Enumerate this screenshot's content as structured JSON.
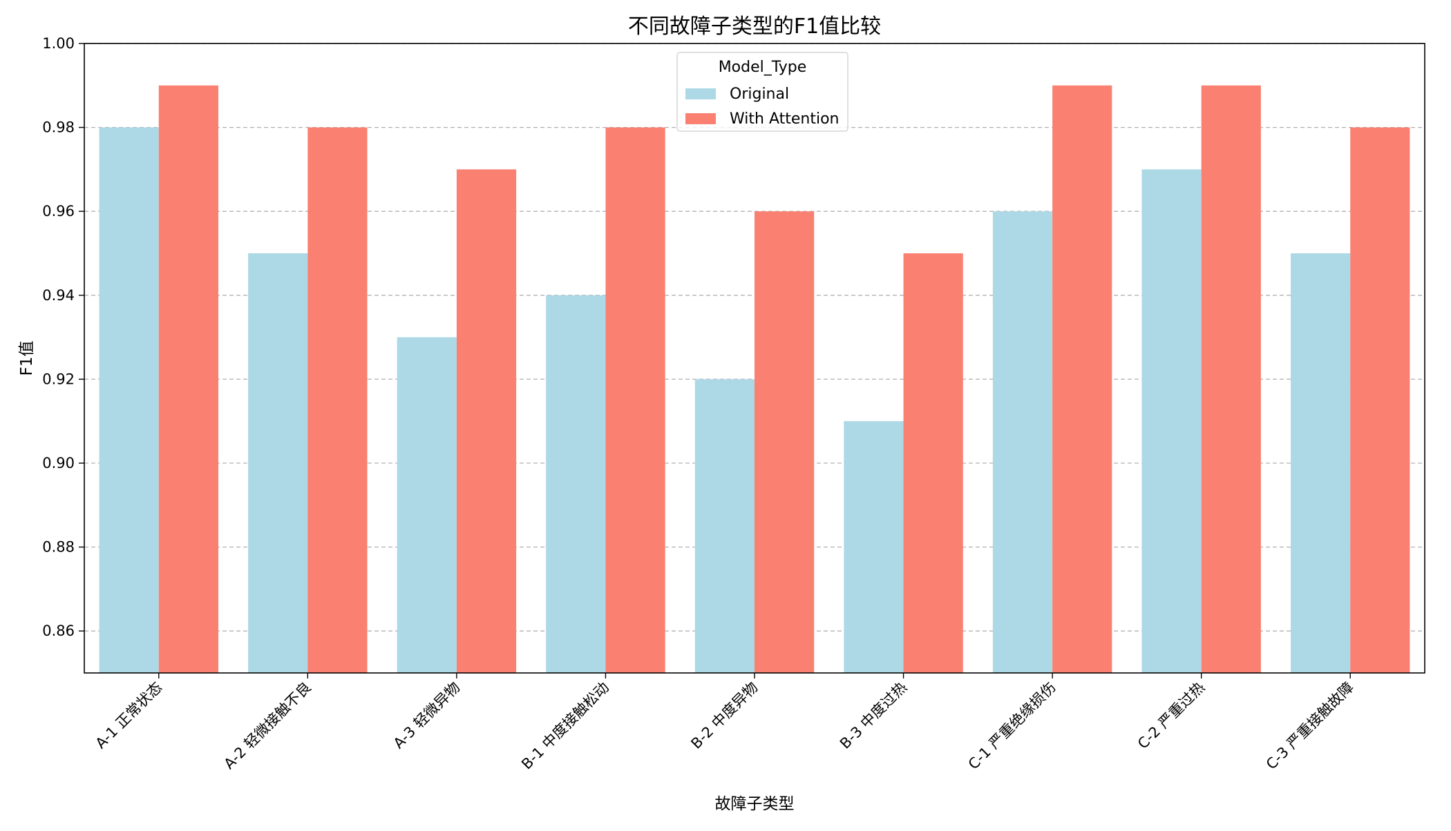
{
  "chart_data": {
    "type": "bar",
    "title": "不同故障子类型的F1值比较",
    "xlabel": "故障子类型",
    "ylabel": "F1值",
    "categories": [
      "A-1 正常状态",
      "A-2 轻微接触不良",
      "A-3 轻微异物",
      "B-1 中度接触松动",
      "B-2 中度异物",
      "B-3 中度过热",
      "C-1 严重绝缘损伤",
      "C-2 严重过热",
      "C-3 严重接触故障"
    ],
    "series": [
      {
        "name": "Original",
        "color": "#add8e6",
        "values": [
          0.98,
          0.95,
          0.93,
          0.94,
          0.92,
          0.91,
          0.96,
          0.97,
          0.95
        ]
      },
      {
        "name": "With Attention",
        "color": "#fa8072",
        "values": [
          0.99,
          0.98,
          0.97,
          0.98,
          0.96,
          0.95,
          0.99,
          0.99,
          0.98
        ]
      }
    ],
    "ylim": [
      0.85,
      1.0
    ],
    "yticks": [
      0.86,
      0.88,
      0.9,
      0.92,
      0.94,
      0.96,
      0.98,
      1.0
    ],
    "ytick_labels": [
      "0.86",
      "0.88",
      "0.90",
      "0.92",
      "0.94",
      "0.96",
      "0.98",
      "1.00"
    ],
    "grid": "y-dashed",
    "legend": {
      "title": "Model_Type",
      "placement": "top-center"
    }
  }
}
